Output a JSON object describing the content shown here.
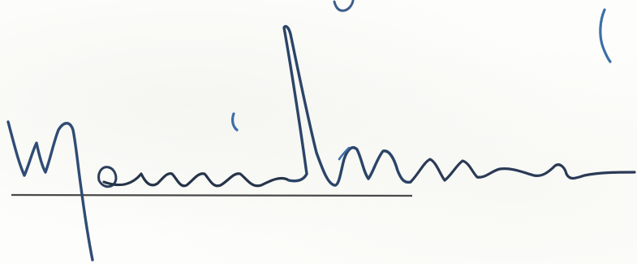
{
  "document": {
    "type": "handwritten-signature",
    "ink_color": "#2b3f5c",
    "ink_highlight_color": "#3a6fa8",
    "baseline_color": "#4a4a4a",
    "paper_color": "#fdfdfb"
  }
}
